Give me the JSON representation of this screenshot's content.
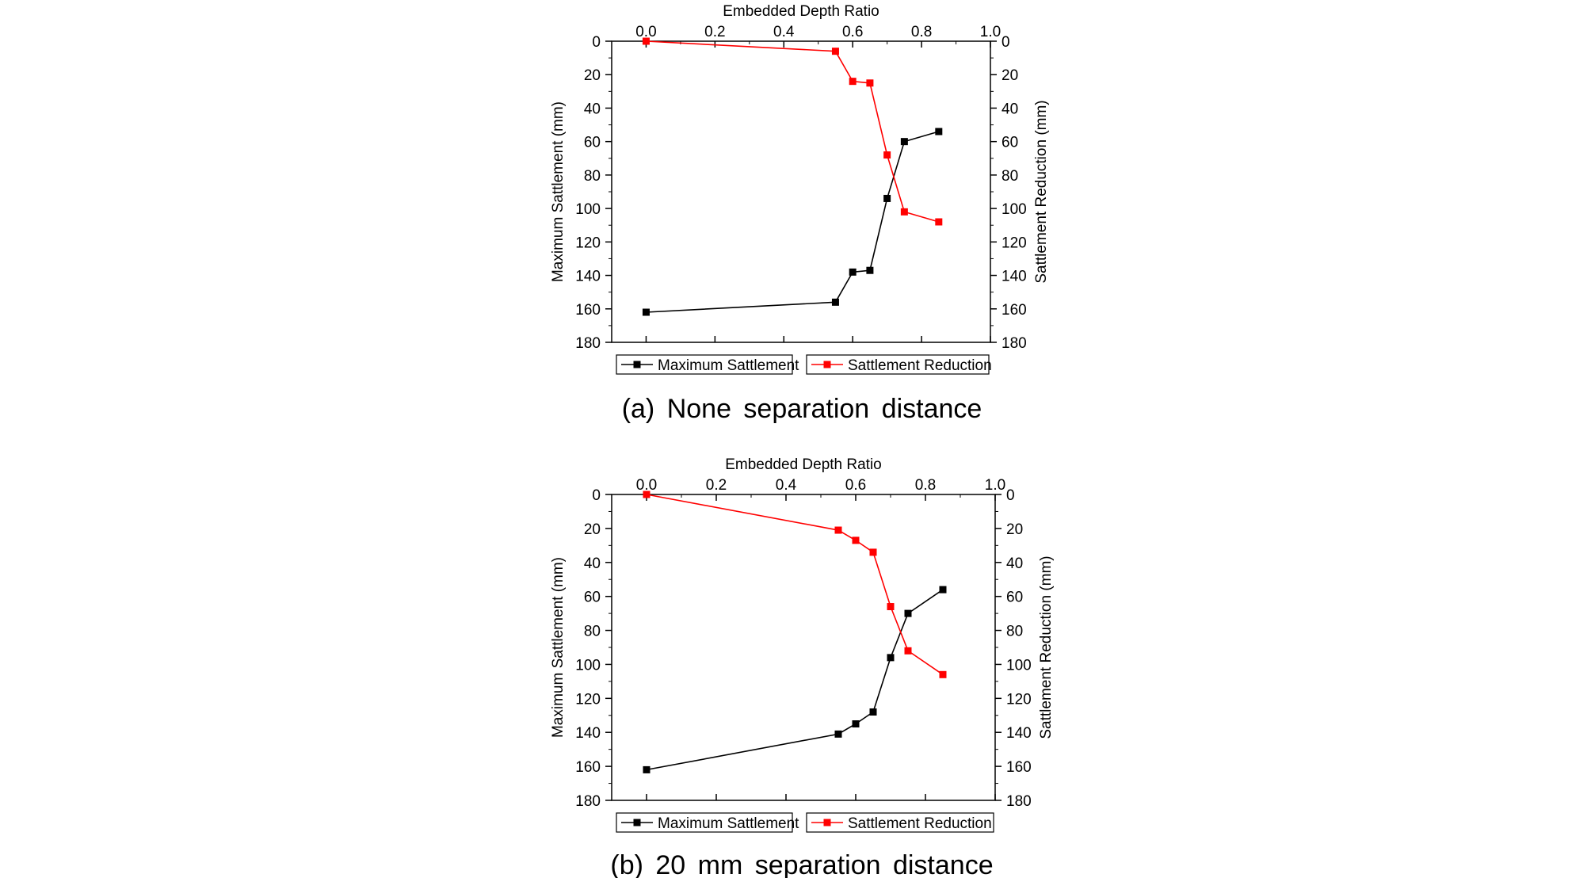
{
  "chart_data": [
    {
      "type": "line",
      "caption": "(a) None separation distance",
      "xlabel": "Embedded Depth Ratio",
      "ylabel_left": "Maximum Sattlement (mm)",
      "ylabel_right": "Sattlement Reduction (mm)",
      "xlim": [
        -0.1,
        1.0
      ],
      "ylim": [
        0,
        180
      ],
      "y_inverted": true,
      "x_ticks": [
        "0.0",
        "0.2",
        "0.4",
        "0.6",
        "0.8",
        "1.0"
      ],
      "y_ticks": [
        "0",
        "20",
        "40",
        "60",
        "80",
        "100",
        "120",
        "140",
        "160",
        "180"
      ],
      "legend_position": "bottom",
      "series": [
        {
          "name": "Maximum Sattlement",
          "color": "#000000",
          "x": [
            0.0,
            0.55,
            0.6,
            0.65,
            0.7,
            0.75,
            0.85
          ],
          "y": [
            162,
            156,
            138,
            137,
            94,
            60,
            54
          ]
        },
        {
          "name": "Sattlement Reduction",
          "color": "#ff0000",
          "x": [
            0.0,
            0.55,
            0.6,
            0.65,
            0.7,
            0.75,
            0.85
          ],
          "y": [
            0,
            6,
            24,
            25,
            68,
            102,
            108
          ]
        }
      ]
    },
    {
      "type": "line",
      "caption": "(b) 20 mm separation distance",
      "xlabel": "Embedded Depth Ratio",
      "ylabel_left": "Maximum Sattlement (mm)",
      "ylabel_right": "Sattlement Reduction (mm)",
      "xlim": [
        -0.1,
        1.0
      ],
      "ylim": [
        0,
        180
      ],
      "y_inverted": true,
      "x_ticks": [
        "0.0",
        "0.2",
        "0.4",
        "0.6",
        "0.8",
        "1.0"
      ],
      "y_ticks": [
        "0",
        "20",
        "40",
        "60",
        "80",
        "100",
        "120",
        "140",
        "160",
        "180"
      ],
      "legend_position": "bottom",
      "series": [
        {
          "name": "Maximum Sattlement",
          "color": "#000000",
          "x": [
            0.0,
            0.55,
            0.6,
            0.65,
            0.7,
            0.75,
            0.85
          ],
          "y": [
            162,
            141,
            135,
            128,
            96,
            70,
            56
          ]
        },
        {
          "name": "Sattlement Reduction",
          "color": "#ff0000",
          "x": [
            0.0,
            0.55,
            0.6,
            0.65,
            0.7,
            0.75,
            0.85
          ],
          "y": [
            0,
            21,
            27,
            34,
            66,
            92,
            106
          ]
        }
      ]
    }
  ]
}
